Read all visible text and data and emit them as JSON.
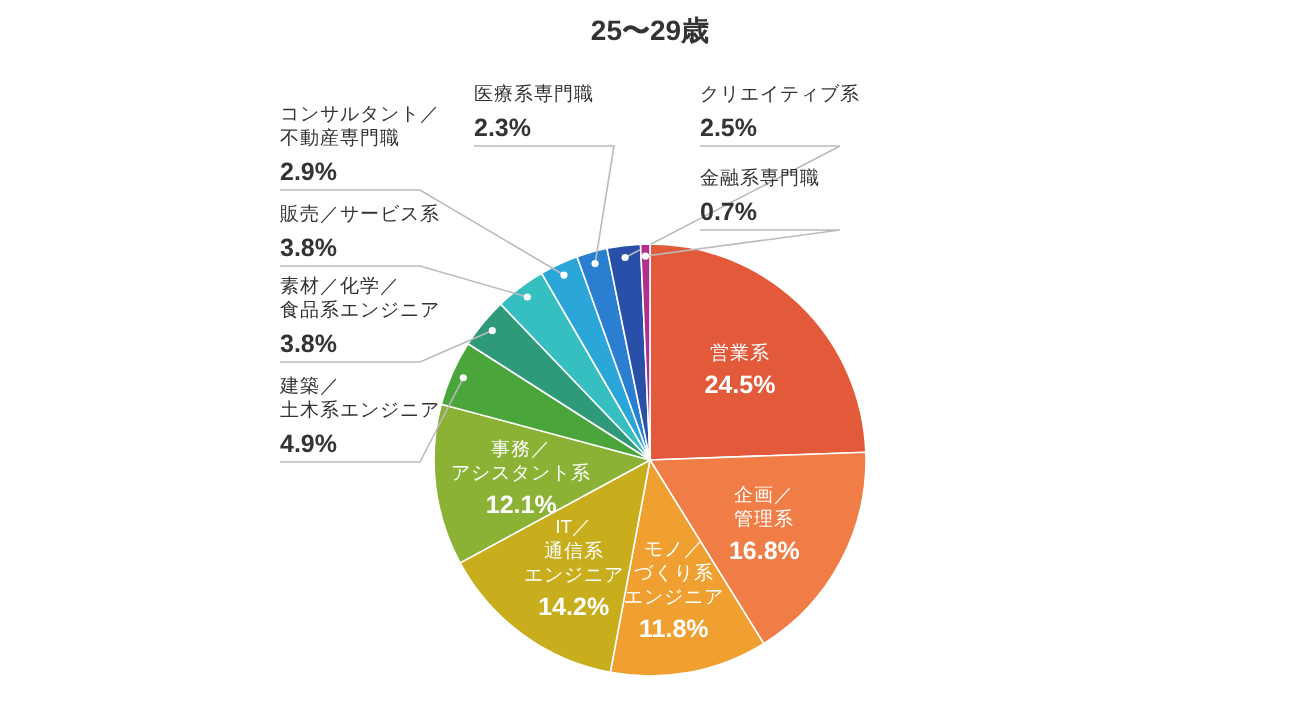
{
  "chart_data": {
    "type": "pie",
    "title": "25〜29歳",
    "categories": [
      "営業系",
      "企画／管理系",
      "モノ／づくり系エンジニア",
      "IT／通信系エンジニア",
      "事務／アシスタント系",
      "建築／土木系エンジニア",
      "素材／化学／食品系エンジニア",
      "販売／サービス系",
      "コンサルタント／不動産専門職",
      "医療系専門職",
      "クリエイティブ系",
      "金融系専門職"
    ],
    "values": [
      24.5,
      16.8,
      11.8,
      14.2,
      12.1,
      4.9,
      3.8,
      3.8,
      2.9,
      2.3,
      2.5,
      0.7
    ],
    "colors": [
      "#e35a3b",
      "#ef7d45",
      "#f0a030",
      "#c8ae1c",
      "#8bb235",
      "#4aa53a",
      "#2e9a7a",
      "#35bfc0",
      "#2aa7d8",
      "#2a7fd0",
      "#2a4fa8",
      "#b0308e"
    ],
    "value_labels": [
      "24.5%",
      "16.8%",
      "11.8%",
      "14.2%",
      "12.1%",
      "4.9%",
      "3.8%",
      "3.8%",
      "2.9%",
      "2.3%",
      "2.5%",
      "0.7%"
    ]
  }
}
